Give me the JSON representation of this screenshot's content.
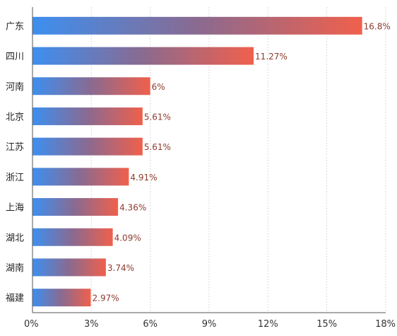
{
  "colors": {
    "gradient_start": "#3d8ff0",
    "gradient_mid": "#8a6a90",
    "gradient_end": "#f0604c",
    "grid": "#cfcfcf",
    "axis": "#555555"
  },
  "chart_data": {
    "type": "bar",
    "orientation": "horizontal",
    "title": "",
    "xlabel": "",
    "ylabel": "",
    "categories": [
      "广东",
      "四川",
      "河南",
      "北京",
      "江苏",
      "浙江",
      "上海",
      "湖北",
      "湖南",
      "福建"
    ],
    "values": [
      16.8,
      11.27,
      6,
      5.61,
      5.61,
      4.91,
      4.36,
      4.09,
      3.74,
      2.97
    ],
    "value_labels": [
      "16.8%",
      "11.27%",
      "6%",
      "5.61%",
      "5.61%",
      "4.91%",
      "4.36%",
      "4.09%",
      "3.74%",
      "2.97%"
    ],
    "x_ticks": [
      0,
      3,
      6,
      9,
      12,
      15,
      18
    ],
    "x_tick_labels": [
      "0%",
      "3%",
      "6%",
      "9%",
      "12%",
      "15%",
      "18%"
    ],
    "xlim": [
      0,
      18
    ],
    "grid": true,
    "legend": "none"
  }
}
